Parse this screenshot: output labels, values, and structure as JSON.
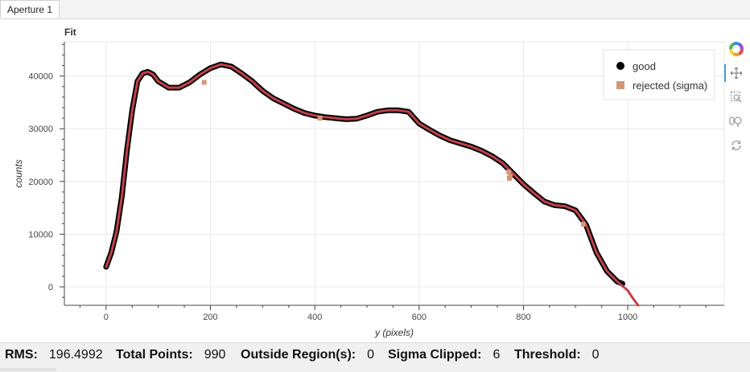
{
  "tabs": [
    {
      "label": "Aperture 1",
      "active": true
    }
  ],
  "plot": {
    "title": "Fit",
    "legend": {
      "placement": "top-right",
      "items": [
        {
          "label": "good",
          "marker": "circle",
          "color": "#000000"
        },
        {
          "label": "rejected (sigma)",
          "marker": "square",
          "color": "#d4977a"
        }
      ]
    },
    "fit_line_color": "#c0404a"
  },
  "toolbar": {
    "tools": [
      {
        "icon": "bokeh-logo-icon",
        "active": false
      },
      {
        "icon": "pan-icon",
        "active": true
      },
      {
        "icon": "box-zoom-icon",
        "active": false
      },
      {
        "icon": "wheel-zoom-icon",
        "active": false
      },
      {
        "icon": "reset-icon",
        "active": false
      }
    ]
  },
  "status": {
    "rms_label": "RMS:",
    "rms_value": "196.4992",
    "total_label": "Total Points:",
    "total_value": "990",
    "outside_label": "Outside Region(s):",
    "outside_value": "0",
    "sigma_label": "Sigma Clipped:",
    "sigma_value": "6",
    "threshold_label": "Threshold:",
    "threshold_value": "0"
  },
  "chart_data": {
    "type": "scatter",
    "title": "Fit",
    "xlabel": "y (pixels)",
    "ylabel": "counts",
    "xlim": [
      -80,
      1185
    ],
    "ylim": [
      -3500,
      46500
    ],
    "x_ticks": [
      0,
      200,
      400,
      600,
      800,
      1000
    ],
    "x_tick_labels": [
      "0",
      "200",
      "400",
      "600",
      "800",
      "1000"
    ],
    "y_ticks": [
      0,
      10000,
      20000,
      30000,
      40000
    ],
    "y_tick_labels": [
      "0",
      "10000",
      "20000",
      "30000",
      "40000"
    ],
    "grid": true,
    "legend_placement": "top-right",
    "series": [
      {
        "name": "good",
        "kind": "scatter",
        "x": [
          0,
          10,
          20,
          30,
          40,
          50,
          60,
          70,
          80,
          90,
          100,
          120,
          140,
          160,
          180,
          200,
          220,
          240,
          260,
          280,
          300,
          320,
          340,
          360,
          380,
          400,
          420,
          440,
          460,
          480,
          500,
          520,
          540,
          560,
          580,
          600,
          620,
          640,
          660,
          680,
          700,
          720,
          740,
          760,
          780,
          800,
          820,
          840,
          860,
          880,
          900,
          920,
          940,
          960,
          980,
          990
        ],
        "y": [
          3800,
          6500,
          10500,
          17000,
          26000,
          33500,
          39000,
          40500,
          40800,
          40300,
          39000,
          37800,
          37800,
          38800,
          40300,
          41500,
          42200,
          41800,
          40500,
          39000,
          37200,
          35800,
          34800,
          33800,
          33000,
          32500,
          32200,
          32000,
          31800,
          31900,
          32500,
          33200,
          33500,
          33500,
          33200,
          31000,
          29800,
          28700,
          27800,
          27200,
          26600,
          25800,
          24800,
          23500,
          21500,
          19500,
          17800,
          16200,
          15500,
          15300,
          14500,
          11800,
          6500,
          3000,
          1000,
          600
        ]
      },
      {
        "name": "rejected (sigma)",
        "kind": "scatter",
        "x": [
          188,
          410,
          772,
          773,
          775,
          915
        ],
        "y": [
          38800,
          32000,
          21800,
          20600,
          21000,
          11900
        ]
      },
      {
        "name": "fit",
        "kind": "line",
        "x": [
          0,
          10,
          20,
          30,
          40,
          50,
          60,
          70,
          80,
          90,
          100,
          120,
          140,
          160,
          180,
          200,
          220,
          240,
          260,
          280,
          300,
          320,
          340,
          360,
          380,
          400,
          420,
          440,
          460,
          480,
          500,
          520,
          540,
          560,
          580,
          600,
          620,
          640,
          660,
          680,
          700,
          720,
          740,
          760,
          780,
          800,
          820,
          840,
          860,
          880,
          900,
          920,
          940,
          960,
          980,
          1000,
          1010,
          1020
        ],
        "y": [
          3800,
          6500,
          10500,
          17000,
          26000,
          33500,
          39000,
          40500,
          40800,
          40300,
          39000,
          37800,
          37800,
          38800,
          40300,
          41500,
          42200,
          41800,
          40500,
          39000,
          37200,
          35800,
          34800,
          33800,
          33000,
          32500,
          32200,
          32000,
          31800,
          31900,
          32500,
          33200,
          33500,
          33500,
          33200,
          31000,
          29800,
          28700,
          27800,
          27200,
          26600,
          25800,
          24800,
          23500,
          21500,
          19500,
          17800,
          16200,
          15500,
          15300,
          14500,
          11800,
          6500,
          3000,
          1000,
          -700,
          -2200,
          -3500
        ]
      }
    ]
  }
}
